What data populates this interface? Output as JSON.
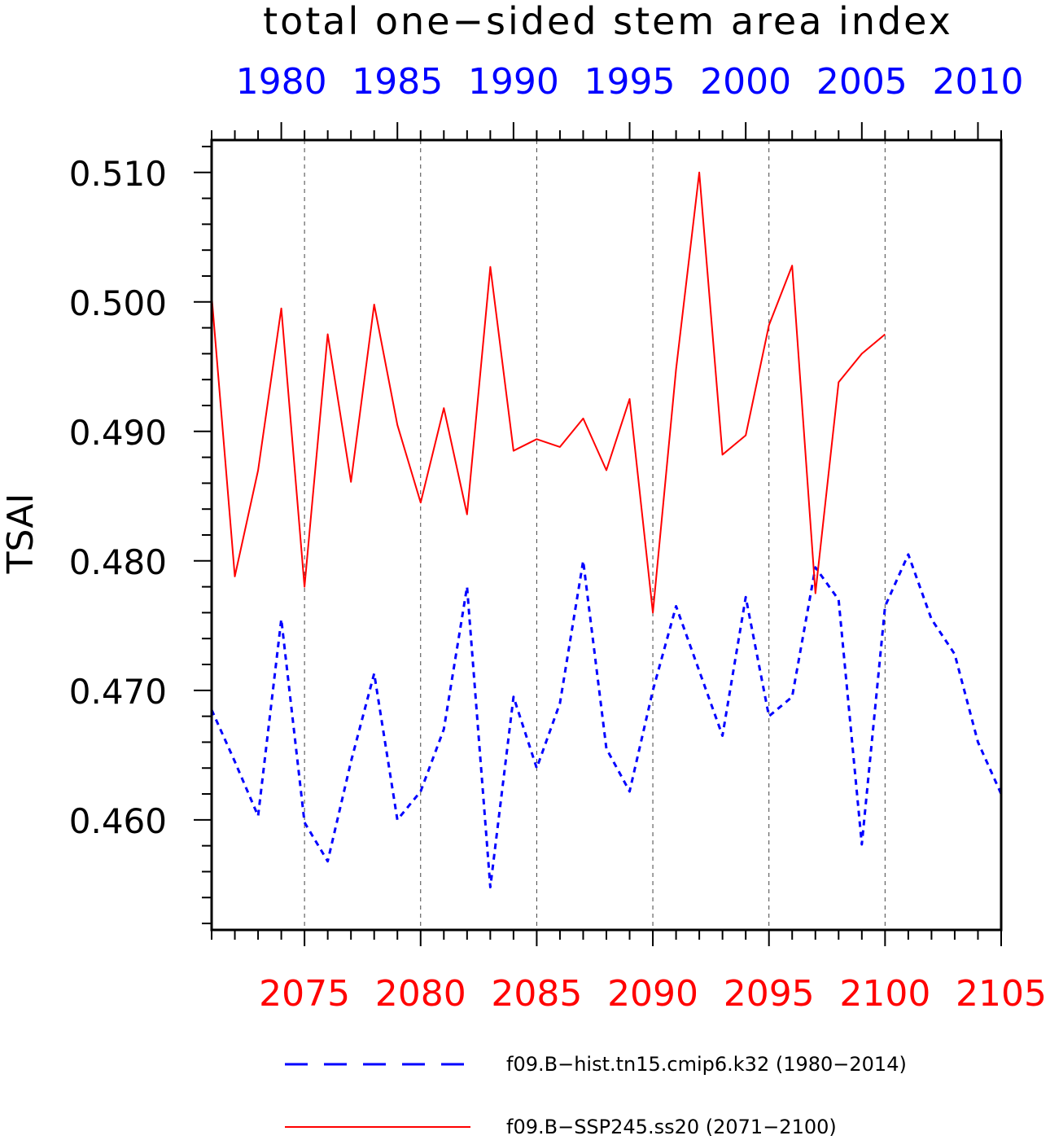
{
  "chart_data": {
    "type": "line",
    "title": "total one−sided stem area index",
    "ylabel": "TSAI",
    "ylim": [
      0.4515,
      0.5125
    ],
    "ytick_labels": [
      "0.460",
      "0.470",
      "0.480",
      "0.490",
      "0.500",
      "0.510"
    ],
    "x_bottom": {
      "range": [
        2071,
        2105
      ],
      "tick_labels": [
        "2075",
        "2080",
        "2085",
        "2090",
        "2095",
        "2100",
        "2105"
      ],
      "color": "#ff0000"
    },
    "x_top": {
      "range": [
        1977,
        2011
      ],
      "tick_labels": [
        "1980",
        "1985",
        "1990",
        "1995",
        "2000",
        "2005",
        "2010"
      ],
      "color": "#0000ff"
    },
    "grid": "vertical dashed",
    "series": [
      {
        "name": "f09.B−hist.tn15.cmip6.k32 (1980−2014)",
        "axis": "top",
        "color": "#0000ff",
        "style": "dashed",
        "x": [
          1977,
          1978,
          1979,
          1980,
          1981,
          1982,
          1983,
          1984,
          1985,
          1986,
          1987,
          1988,
          1989,
          1990,
          1991,
          1992,
          1993,
          1994,
          1995,
          1996,
          1997,
          1998,
          1999,
          2000,
          2001,
          2002,
          2003,
          2004,
          2005,
          2006,
          2007,
          2008,
          2009,
          2010,
          2011
        ],
        "y": [
          0.4685,
          0.4645,
          0.4603,
          0.4755,
          0.4598,
          0.4568,
          0.4645,
          0.4713,
          0.46,
          0.4622,
          0.467,
          0.478,
          0.4548,
          0.4695,
          0.464,
          0.469,
          0.48,
          0.4655,
          0.4622,
          0.47,
          0.4765,
          0.4715,
          0.4665,
          0.4772,
          0.468,
          0.4695,
          0.4795,
          0.477,
          0.4581,
          0.4765,
          0.4805,
          0.4755,
          0.4728,
          0.466,
          0.462
        ]
      },
      {
        "name": "f09.B−SSP245.ss20 (2071−2100)",
        "axis": "bottom",
        "color": "#ff0000",
        "style": "solid",
        "x": [
          2071,
          2072,
          2073,
          2074,
          2075,
          2076,
          2077,
          2078,
          2079,
          2080,
          2081,
          2082,
          2083,
          2084,
          2085,
          2086,
          2087,
          2088,
          2089,
          2090,
          2091,
          2092,
          2093,
          2094,
          2095,
          2096,
          2097,
          2098,
          2099,
          2100
        ],
        "y": [
          0.5005,
          0.4788,
          0.487,
          0.4995,
          0.478,
          0.4975,
          0.4861,
          0.4998,
          0.4905,
          0.4845,
          0.4918,
          0.4836,
          0.5027,
          0.4885,
          0.4894,
          0.4888,
          0.491,
          0.487,
          0.4925,
          0.476,
          0.4948,
          0.51,
          0.4882,
          0.4897,
          0.4982,
          0.5028,
          0.4775,
          0.4938,
          0.496,
          0.4975
        ]
      }
    ],
    "legend": "bottom"
  }
}
